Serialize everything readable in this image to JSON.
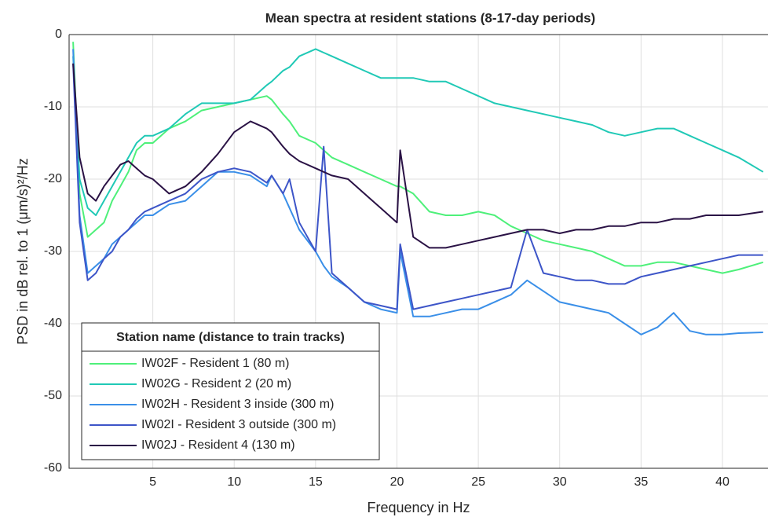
{
  "chart_data": {
    "type": "line",
    "title": "Mean spectra at resident stations (8-17-day periods)",
    "x_label": "Frequency in Hz",
    "y_label": "PSD in dB rel. to 1 (μm/s)²/Hz",
    "legend_title": "Station name (distance to train tracks)",
    "legend": "lower left",
    "grid": true,
    "xlim": [
      0,
      42.8
    ],
    "ylim": [
      -60,
      0
    ],
    "xticks": [
      5,
      10,
      15,
      20,
      25,
      30,
      35,
      40
    ],
    "yticks": [
      -60,
      -50,
      -40,
      -30,
      -20,
      -10,
      0
    ],
    "x": [
      0.1,
      0.5,
      1,
      1.5,
      2,
      2.5,
      3,
      3.5,
      4,
      4.5,
      5,
      6,
      7,
      8,
      9,
      10,
      11,
      12,
      12.3,
      13,
      13.4,
      14,
      15,
      15.5,
      16,
      17,
      18,
      19,
      20,
      20.2,
      21,
      22,
      23,
      24,
      25,
      26,
      27,
      28,
      29,
      30,
      31,
      32,
      33,
      34,
      35,
      36,
      37,
      38,
      39,
      40,
      41,
      42.5
    ],
    "series": [
      {
        "name": "IW02F - Resident 1 (80 m)",
        "color": "#4ef07a",
        "values": [
          -1,
          -22,
          -28,
          -27,
          -26,
          -23,
          -21,
          -19,
          -16,
          -15,
          -15,
          -13,
          -12,
          -10.5,
          -10,
          -9.5,
          -9,
          -8.5,
          -9,
          -11,
          -12,
          -14,
          -15,
          -16,
          -17,
          -18,
          -19,
          -20,
          -21,
          -21,
          -22,
          -24.5,
          -25,
          -25,
          -24.5,
          -25,
          -26.5,
          -27.5,
          -28.5,
          -29,
          -29.5,
          -30,
          -31,
          -32,
          -32,
          -31.5,
          -31.5,
          -32,
          -32.5,
          -33,
          -32.5,
          -31.5
        ]
      },
      {
        "name": "IW02G - Resident 2 (20 m)",
        "color": "#20c9b6",
        "values": [
          -3,
          -20,
          -24,
          -25,
          -23,
          -21,
          -19,
          -17,
          -15,
          -14,
          -14,
          -13,
          -11,
          -9.5,
          -9.5,
          -9.5,
          -9,
          -7,
          -6.5,
          -5,
          -4.5,
          -3,
          -2,
          -2.5,
          -3,
          -4,
          -5,
          -6,
          -6,
          -6,
          -6,
          -6.5,
          -6.5,
          -7.5,
          -8.5,
          -9.5,
          -10,
          -10.5,
          -11,
          -11.5,
          -12,
          -12.5,
          -13.5,
          -14,
          -13.5,
          -13,
          -13,
          -14,
          -15,
          -16,
          -17,
          -19
        ]
      },
      {
        "name": "IW02H - Resident 3 inside (300 m)",
        "color": "#3a8fe8",
        "values": [
          -2,
          -25,
          -33,
          -32,
          -31,
          -29,
          -28,
          -27,
          -26,
          -25,
          -25,
          -23.5,
          -23,
          -21,
          -19,
          -19,
          -19.5,
          -21,
          -19.5,
          -22,
          -24,
          -27,
          -30,
          -32,
          -33.5,
          -35,
          -37,
          -38,
          -38.5,
          -30,
          -39,
          -39,
          -38.5,
          -38,
          -38,
          -37,
          -36,
          -34,
          -35.5,
          -37,
          -37.5,
          -38,
          -38.5,
          -40,
          -41.5,
          -40.5,
          -38.5,
          -41,
          -41.5,
          -41.5,
          -41.3,
          -41.2
        ]
      },
      {
        "name": "IW02I - Resident 3 outside (300 m)",
        "color": "#3d55c8",
        "values": [
          -4,
          -26,
          -34,
          -33,
          -31,
          -30,
          -28,
          -27,
          -25.5,
          -24.5,
          -24,
          -23,
          -22,
          -20,
          -19,
          -18.5,
          -19,
          -20.5,
          -19.5,
          -22,
          -20,
          -26,
          -30,
          -15.5,
          -33,
          -35,
          -37,
          -37.5,
          -38,
          -29,
          -38,
          -37.5,
          -37,
          -36.5,
          -36,
          -35.5,
          -35,
          -27,
          -33,
          -33.5,
          -34,
          -34,
          -34.5,
          -34.5,
          -33.5,
          -33,
          -32.5,
          -32,
          -31.5,
          -31,
          -30.5,
          -30.5
        ]
      },
      {
        "name": "IW02J - Resident 4 (130 m)",
        "color": "#2a1245",
        "values": [
          -4,
          -17,
          -22,
          -23,
          -21,
          -19.5,
          -18,
          -17.5,
          -18.5,
          -19.5,
          -20,
          -22,
          -21,
          -19,
          -16.5,
          -13.5,
          -12,
          -13,
          -13.5,
          -15.5,
          -16.5,
          -17.5,
          -18.5,
          -19,
          -19.5,
          -20,
          -22,
          -24,
          -26,
          -16,
          -28,
          -29.5,
          -29.5,
          -29,
          -28.5,
          -28,
          -27.5,
          -27,
          -27,
          -27.5,
          -27,
          -27,
          -26.5,
          -26.5,
          -26,
          -26,
          -25.5,
          -25.5,
          -25,
          -25,
          -25,
          -24.5
        ]
      }
    ]
  }
}
